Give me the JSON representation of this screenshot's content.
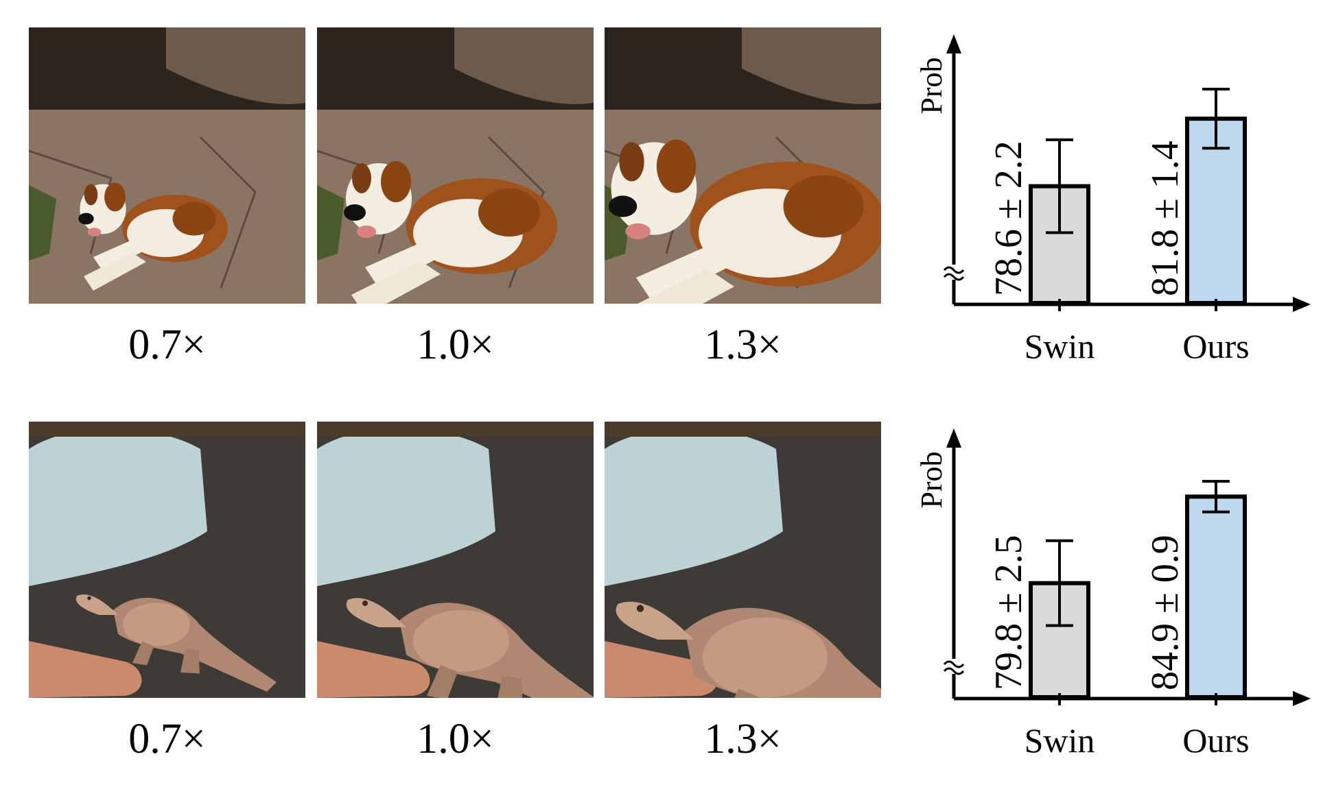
{
  "panels": [
    {
      "subject": "dog",
      "images": [
        {
          "scale_label": "0.7×",
          "subject_scale": 0.7
        },
        {
          "scale_label": "1.0×",
          "subject_scale": 1.0
        },
        {
          "scale_label": "1.3×",
          "subject_scale": 1.3
        }
      ]
    },
    {
      "subject": "lizard",
      "images": [
        {
          "scale_label": "0.7×",
          "subject_scale": 0.7
        },
        {
          "scale_label": "1.0×",
          "subject_scale": 1.0
        },
        {
          "scale_label": "1.3×",
          "subject_scale": 1.3
        }
      ]
    }
  ],
  "chart_data": [
    {
      "type": "bar",
      "ylabel": "Prob",
      "categories": [
        "Swin",
        "Ours"
      ],
      "values": [
        78.6,
        81.8
      ],
      "errors": [
        2.2,
        1.4
      ],
      "value_labels": [
        "78.6 ± 2.2",
        "81.8 ± 1.4"
      ],
      "colors": [
        "#d9d9d9",
        "#bdd7ee"
      ],
      "y_axis_break": true,
      "ylim": [
        73,
        84.5
      ]
    },
    {
      "type": "bar",
      "ylabel": "Prob",
      "categories": [
        "Swin",
        "Ours"
      ],
      "values": [
        79.8,
        84.9
      ],
      "errors": [
        2.5,
        0.9
      ],
      "value_labels": [
        "79.8 ± 2.5",
        "84.9 ± 0.9"
      ],
      "colors": [
        "#d9d9d9",
        "#bdd7ee"
      ],
      "y_axis_break": true,
      "ylim": [
        73,
        87.3
      ]
    }
  ]
}
